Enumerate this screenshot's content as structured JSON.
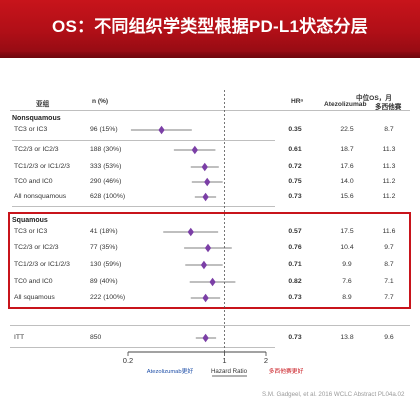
{
  "slide": {
    "title": "OS：不同组织学类型根据PD-L1状态分层"
  },
  "table_headers": {
    "subgroup": "亚组",
    "n": "n (%)",
    "hr": "HRᵃ",
    "median_os": "中位OS，月",
    "atezolizumab": "Atezolizumab",
    "docetaxel": "多西他赛"
  },
  "groups": {
    "nonsquamous": "Nonsquamous",
    "squamous": "Squamous"
  },
  "rows": [
    {
      "subgroup": "TC3 or IC3",
      "n": "96 (15%)",
      "hr": "0.35",
      "atezolizumab": "22.5",
      "docetaxel": "8.7"
    },
    {
      "subgroup": "TC2/3 or IC2/3",
      "n": "188 (30%)",
      "hr": "0.61",
      "atezolizumab": "18.7",
      "docetaxel": "11.3"
    },
    {
      "subgroup": "TC1/2/3 or IC1/2/3",
      "n": "333 (53%)",
      "hr": "0.72",
      "atezolizumab": "17.6",
      "docetaxel": "11.3"
    },
    {
      "subgroup": "TC0 and IC0",
      "n": "290 (46%)",
      "hr": "0.75",
      "atezolizumab": "14.0",
      "docetaxel": "11.2"
    },
    {
      "subgroup": "All nonsquamous",
      "n": "628 (100%)",
      "hr": "0.73",
      "atezolizumab": "15.6",
      "docetaxel": "11.2"
    },
    {
      "subgroup": "TC3 or IC3",
      "n": "41 (18%)",
      "hr": "0.57",
      "atezolizumab": "17.5",
      "docetaxel": "11.6"
    },
    {
      "subgroup": "TC2/3 or IC2/3",
      "n": "77 (35%)",
      "hr": "0.76",
      "atezolizumab": "10.4",
      "docetaxel": "9.7"
    },
    {
      "subgroup": "TC1/2/3 or IC1/2/3",
      "n": "130 (59%)",
      "hr": "0.71",
      "atezolizumab": "9.9",
      "docetaxel": "8.7"
    },
    {
      "subgroup": "TC0 and IC0",
      "n": "89 (40%)",
      "hr": "0.82",
      "atezolizumab": "7.6",
      "docetaxel": "7.1"
    },
    {
      "subgroup": "All squamous",
      "n": "222 (100%)",
      "hr": "0.73",
      "atezolizumab": "8.9",
      "docetaxel": "7.7"
    },
    {
      "subgroup": "ITT",
      "n": "850",
      "hr": "0.73",
      "atezolizumab": "13.8",
      "docetaxel": "9.6"
    }
  ],
  "chart_data": {
    "type": "scatter",
    "subtype": "forest-plot",
    "x_scale": "log",
    "xlim": [
      0.2,
      2
    ],
    "x_ticks": [
      "0.2",
      "1",
      "2"
    ],
    "xlabel": "Hazard Ratio",
    "left_label": "Atezolizumab更好",
    "right_label": "多西他赛更好",
    "reference_line": 1,
    "marker_color": "#7b3fa6",
    "categories": [
      "TC3 or IC3",
      "TC2/3 or IC2/3",
      "TC1/2/3 or IC1/2/3",
      "TC0 and IC0",
      "All nonsquamous",
      "TC3 or IC3",
      "TC2/3 or IC2/3",
      "TC1/2/3 or IC1/2/3",
      "TC0 and IC0",
      "All squamous",
      "ITT"
    ],
    "series": [
      {
        "values": [
          0.35,
          0.61,
          0.72,
          0.75,
          0.73,
          0.57,
          0.76,
          0.71,
          0.82,
          0.73,
          0.73
        ],
        "ci_low": [
          0.21,
          0.43,
          0.57,
          0.58,
          0.61,
          0.36,
          0.51,
          0.52,
          0.56,
          0.57,
          0.62
        ],
        "ci_high": [
          0.58,
          0.86,
          0.91,
          0.97,
          0.87,
          0.9,
          1.13,
          0.97,
          1.2,
          0.93,
          0.87
        ]
      }
    ]
  },
  "citation": "S.M. Gadgeel, et al. 2016 WCLC Abstract PL04a.02",
  "colors": {
    "brand_red": "#c8141b",
    "marker_purple": "#7b3fa6"
  }
}
